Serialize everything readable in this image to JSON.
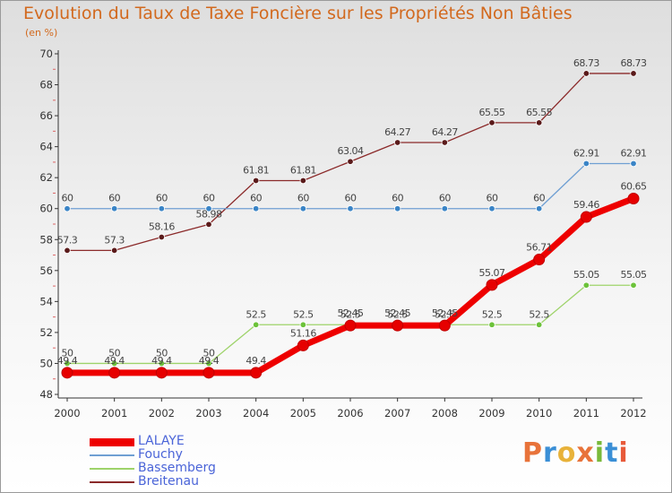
{
  "title": "Evolution du Taux de Taxe Foncière sur les Propriétés Non Bâties",
  "unit_label": "(en %)",
  "logo": {
    "letters": [
      "P",
      "r",
      "o",
      "x",
      "i",
      "t",
      "i"
    ],
    "colors": [
      "#e8733a",
      "#3a8fd6",
      "#e8b23a",
      "#e8733a",
      "#79b93a",
      "#3a8fd6",
      "#e85a3a"
    ]
  },
  "chart_data": {
    "type": "line",
    "x": [
      "2000",
      "2001",
      "2002",
      "2003",
      "2004",
      "2005",
      "2006",
      "2007",
      "2008",
      "2009",
      "2010",
      "2011",
      "2012"
    ],
    "ylim": [
      48,
      70
    ],
    "yticks": [
      48,
      50,
      52,
      54,
      56,
      58,
      60,
      62,
      64,
      66,
      68,
      70
    ],
    "grid": false,
    "legend_position": "bottom-left",
    "series": [
      {
        "name": "Breitenau",
        "color": "#8b2a2a",
        "marker": "#5a1a1a",
        "width": 1.3,
        "values": [
          57.3,
          57.3,
          58.16,
          58.98,
          61.81,
          61.81,
          63.04,
          64.27,
          64.27,
          65.55,
          65.55,
          68.73,
          68.73
        ],
        "labels": [
          "57.3",
          "57.3",
          "58.16",
          "58.98",
          "61.81",
          "61.81",
          "63.04",
          "64.27",
          "64.27",
          "65.55",
          "65.55",
          "68.73",
          "68.73"
        ]
      },
      {
        "name": "Fouchy",
        "color": "#6f9fd3",
        "marker": "#3a84c6",
        "width": 1.3,
        "values": [
          60,
          60,
          60,
          60,
          60,
          60,
          60,
          60,
          60,
          60,
          60,
          62.91,
          62.91
        ],
        "labels": [
          "60",
          "60",
          "60",
          "60",
          "60",
          "60",
          "60",
          "60",
          "60",
          "60",
          "60",
          "62.91",
          "62.91"
        ]
      },
      {
        "name": "Bassemberg",
        "color": "#9ed36a",
        "marker": "#6cc23a",
        "width": 1.3,
        "values": [
          50,
          50,
          50,
          50,
          52.5,
          52.5,
          52.5,
          52.5,
          52.5,
          52.5,
          52.5,
          55.05,
          55.05
        ],
        "labels": [
          "50",
          "50",
          "50",
          "50",
          "52.5",
          "52.5",
          "52.5",
          "52.5",
          "52.5",
          "52.5",
          "52.5",
          "55.05",
          "55.05"
        ]
      },
      {
        "name": "LALAYE",
        "color": "#ee0000",
        "marker": "#e60000",
        "width": 7,
        "values": [
          49.4,
          49.4,
          49.4,
          49.4,
          49.4,
          51.16,
          52.45,
          52.45,
          52.45,
          55.07,
          56.71,
          59.46,
          60.65
        ],
        "labels": [
          "49.4",
          "49.4",
          "49.4",
          "49.4",
          "49.4",
          "51.16",
          "52.45",
          "52.45",
          "52.45",
          "55.07",
          "56.71",
          "59.46",
          "60.65"
        ]
      }
    ],
    "legend": [
      "LALAYE",
      "Fouchy",
      "Bassemberg",
      "Breitenau"
    ]
  }
}
